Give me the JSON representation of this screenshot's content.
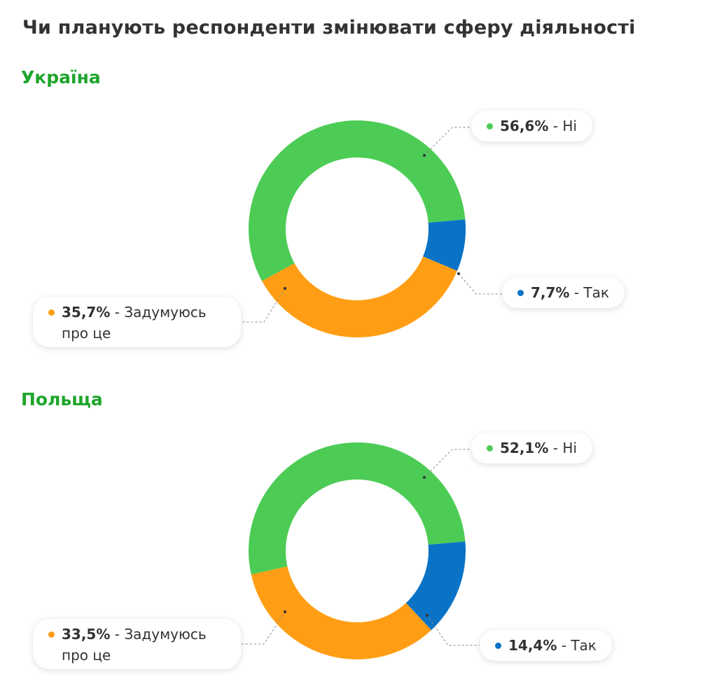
{
  "title": "Чи планують респонденти змінювати сферу діяльності",
  "colors": {
    "no": "#4ccc55",
    "yes": "#0a73c6",
    "thinking": "#ff9e14",
    "section_title": "#1ea52b"
  },
  "chart_data": [
    {
      "type": "pie",
      "title": "Україна",
      "donut": true,
      "slices": [
        {
          "label": "Ні",
          "value": 56.6,
          "display": "56,6%",
          "color": "#4ccc55"
        },
        {
          "label": "Так",
          "value": 7.7,
          "display": "7,7%",
          "color": "#0a73c6"
        },
        {
          "label": "Задумуюсь про це",
          "value": 35.7,
          "display": "35,7%",
          "color": "#ff9e14"
        }
      ]
    },
    {
      "type": "pie",
      "title": "Польща",
      "donut": true,
      "slices": [
        {
          "label": "Ні",
          "value": 52.1,
          "display": "52,1%",
          "color": "#4ccc55"
        },
        {
          "label": "Так",
          "value": 14.4,
          "display": "14,4%",
          "color": "#0a73c6"
        },
        {
          "label": "Задумуюсь про це",
          "value": 33.5,
          "display": "33,5%",
          "color": "#ff9e14"
        }
      ]
    }
  ]
}
